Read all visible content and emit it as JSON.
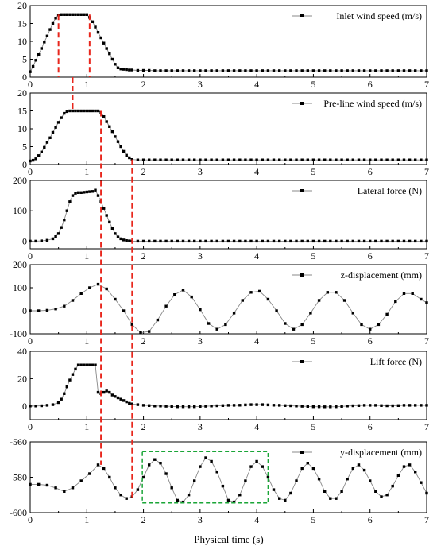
{
  "chart_data": {
    "type": "line",
    "xlabel": "Physical time (s)",
    "xlim": [
      0,
      7
    ],
    "x_ticks": [
      "0",
      "1",
      "2",
      "3",
      "4",
      "5",
      "6",
      "7"
    ],
    "legend_placement": "top-right",
    "grid": false,
    "line_color": "#888888",
    "marker_color": "#000000",
    "marker_style": "square",
    "panels": [
      {
        "legend": "Inlet wind speed (m/s)",
        "ylim": [
          0,
          20
        ],
        "y_ticks": [
          "0",
          "5",
          "10",
          "15",
          "20"
        ],
        "series": {
          "x": [
            0,
            0.05,
            0.1,
            0.15,
            0.2,
            0.25,
            0.3,
            0.35,
            0.4,
            0.45,
            0.5,
            0.55,
            0.6,
            0.65,
            0.7,
            0.75,
            0.8,
            0.85,
            0.9,
            0.95,
            1.0,
            1.05,
            1.1,
            1.15,
            1.2,
            1.25,
            1.3,
            1.35,
            1.4,
            1.45,
            1.5,
            1.55,
            1.6,
            1.65,
            1.7,
            1.75,
            1.8,
            1.9,
            2.0,
            2.1,
            2.2,
            2.3,
            2.4,
            2.5,
            2.6,
            2.7,
            2.8,
            2.9,
            3.0,
            3.1,
            3.2,
            3.3,
            3.4,
            3.5,
            3.6,
            3.7,
            3.8,
            3.9,
            4.0,
            4.1,
            4.2,
            4.3,
            4.4,
            4.5,
            4.6,
            4.7,
            4.8,
            4.9,
            5.0,
            5.1,
            5.2,
            5.3,
            5.4,
            5.5,
            5.6,
            5.7,
            5.8,
            5.9,
            6.0,
            6.1,
            6.2,
            6.3,
            6.4,
            6.5,
            6.6,
            6.7,
            6.8,
            6.9,
            7.0
          ],
          "y": [
            1.5,
            3.0,
            4.7,
            6.3,
            8.0,
            9.8,
            11.5,
            13.3,
            15.0,
            16.5,
            17.4,
            17.5,
            17.5,
            17.5,
            17.5,
            17.5,
            17.5,
            17.5,
            17.5,
            17.5,
            17.5,
            16.7,
            15.5,
            14.0,
            12.5,
            11.0,
            9.5,
            8.0,
            6.5,
            5.0,
            3.6,
            2.6,
            2.3,
            2.2,
            2.1,
            2.0,
            2.0,
            1.9,
            1.9,
            1.9,
            1.8,
            1.8,
            1.8,
            1.8,
            1.8,
            1.8,
            1.8,
            1.8,
            1.8,
            1.8,
            1.8,
            1.8,
            1.8,
            1.8,
            1.8,
            1.8,
            1.8,
            1.8,
            1.8,
            1.8,
            1.8,
            1.8,
            1.8,
            1.8,
            1.8,
            1.8,
            1.8,
            1.8,
            1.8,
            1.8,
            1.8,
            1.8,
            1.8,
            1.8,
            1.8,
            1.8,
            1.8,
            1.8,
            1.8,
            1.8,
            1.8,
            1.8,
            1.8,
            1.8,
            1.8,
            1.8,
            1.8,
            1.8,
            1.8
          ]
        }
      },
      {
        "legend": "Pre-line wind speed (m/s)",
        "ylim": [
          0,
          20
        ],
        "y_ticks": [
          "0",
          "5",
          "10",
          "15",
          "20"
        ],
        "series": {
          "x": [
            0,
            0.05,
            0.1,
            0.15,
            0.2,
            0.25,
            0.3,
            0.35,
            0.4,
            0.45,
            0.5,
            0.55,
            0.6,
            0.65,
            0.7,
            0.75,
            0.8,
            0.85,
            0.9,
            0.95,
            1.0,
            1.05,
            1.1,
            1.15,
            1.2,
            1.25,
            1.3,
            1.35,
            1.4,
            1.45,
            1.5,
            1.55,
            1.6,
            1.65,
            1.7,
            1.75,
            1.8,
            1.9,
            2.0,
            2.1,
            2.2,
            2.3,
            2.4,
            2.5,
            2.6,
            2.7,
            2.8,
            2.9,
            3.0,
            3.1,
            3.2,
            3.3,
            3.4,
            3.5,
            3.6,
            3.7,
            3.8,
            3.9,
            4.0,
            4.1,
            4.2,
            4.3,
            4.4,
            4.5,
            4.6,
            4.7,
            4.8,
            4.9,
            5.0,
            5.1,
            5.2,
            5.3,
            5.4,
            5.5,
            5.6,
            5.7,
            5.8,
            5.9,
            6.0,
            6.1,
            6.2,
            6.3,
            6.4,
            6.5,
            6.6,
            6.7,
            6.8,
            6.9,
            7.0
          ],
          "y": [
            1.0,
            1.2,
            1.6,
            2.5,
            3.5,
            4.8,
            6.2,
            7.5,
            9.0,
            10.4,
            11.8,
            13.1,
            14.3,
            14.8,
            15.0,
            15.0,
            15.0,
            15.0,
            15.0,
            15.0,
            15.0,
            15.0,
            15.0,
            15.0,
            15.0,
            14.6,
            13.4,
            12.0,
            10.6,
            9.2,
            7.8,
            6.4,
            5.0,
            3.7,
            2.6,
            1.9,
            1.4,
            1.3,
            1.3,
            1.3,
            1.3,
            1.3,
            1.3,
            1.3,
            1.3,
            1.3,
            1.3,
            1.3,
            1.3,
            1.3,
            1.3,
            1.3,
            1.3,
            1.3,
            1.3,
            1.3,
            1.3,
            1.3,
            1.3,
            1.3,
            1.3,
            1.3,
            1.3,
            1.3,
            1.3,
            1.3,
            1.3,
            1.3,
            1.3,
            1.3,
            1.3,
            1.3,
            1.3,
            1.3,
            1.3,
            1.3,
            1.3,
            1.3,
            1.3,
            1.3,
            1.3,
            1.3,
            1.3,
            1.3,
            1.3,
            1.3,
            1.3,
            1.3,
            1.3
          ]
        }
      },
      {
        "legend": "Lateral force (N)",
        "ylim": [
          -25,
          200
        ],
        "y_ticks": [
          "0",
          "100",
          "200"
        ],
        "y_tick_values": [
          0,
          100,
          200
        ],
        "series": {
          "x": [
            0,
            0.1,
            0.2,
            0.3,
            0.4,
            0.45,
            0.5,
            0.55,
            0.6,
            0.65,
            0.7,
            0.75,
            0.8,
            0.85,
            0.9,
            0.95,
            1.0,
            1.05,
            1.1,
            1.15,
            1.2,
            1.25,
            1.3,
            1.35,
            1.4,
            1.45,
            1.5,
            1.55,
            1.6,
            1.65,
            1.7,
            1.75,
            1.8,
            1.9,
            2.0,
            2.1,
            2.2,
            2.3,
            2.4,
            2.5,
            2.6,
            2.7,
            2.8,
            2.9,
            3.0,
            3.1,
            3.2,
            3.3,
            3.4,
            3.5,
            3.6,
            3.7,
            3.8,
            3.9,
            4.0,
            4.1,
            4.2,
            4.3,
            4.4,
            4.5,
            4.6,
            4.7,
            4.8,
            4.9,
            5.0,
            5.1,
            5.2,
            5.3,
            5.4,
            5.5,
            5.6,
            5.7,
            5.8,
            5.9,
            6.0,
            6.1,
            6.2,
            6.3,
            6.4,
            6.5,
            6.6,
            6.7,
            6.8,
            6.9,
            7.0
          ],
          "y": [
            0,
            0,
            1,
            3,
            8,
            15,
            25,
            45,
            70,
            100,
            130,
            150,
            158,
            160,
            160,
            161,
            162,
            163,
            164,
            168,
            150,
            130,
            108,
            85,
            63,
            42,
            25,
            14,
            8,
            4,
            2,
            1,
            0,
            0,
            0,
            0,
            0,
            0,
            0,
            0,
            0,
            0,
            0,
            0,
            0,
            0,
            0,
            0,
            0,
            0,
            0,
            0,
            0,
            0,
            0,
            0,
            0,
            0,
            0,
            0,
            0,
            0,
            0,
            0,
            0,
            0,
            0,
            0,
            0,
            0,
            0,
            0,
            0,
            0,
            0,
            0,
            0,
            0,
            0,
            0,
            0,
            0,
            0,
            0,
            0
          ]
        }
      },
      {
        "legend": "z-displacement (mm)",
        "ylim": [
          -100,
          200
        ],
        "y_ticks": [
          "-100",
          "0",
          "100",
          "200"
        ],
        "y_tick_values": [
          -100,
          0,
          100,
          200
        ],
        "series": {
          "x": [
            0,
            0.15,
            0.3,
            0.45,
            0.6,
            0.75,
            0.9,
            1.05,
            1.2,
            1.35,
            1.5,
            1.65,
            1.8,
            1.95,
            2.1,
            2.25,
            2.4,
            2.55,
            2.7,
            2.85,
            3.0,
            3.15,
            3.3,
            3.45,
            3.6,
            3.75,
            3.9,
            4.05,
            4.2,
            4.35,
            4.5,
            4.65,
            4.8,
            4.95,
            5.1,
            5.25,
            5.4,
            5.55,
            5.7,
            5.85,
            6.0,
            6.15,
            6.3,
            6.45,
            6.6,
            6.75,
            6.9,
            7.0
          ],
          "y": [
            0,
            0,
            2,
            8,
            20,
            45,
            75,
            100,
            115,
            95,
            50,
            0,
            -60,
            -95,
            -90,
            -40,
            20,
            70,
            90,
            60,
            5,
            -55,
            -80,
            -60,
            -10,
            45,
            80,
            85,
            50,
            0,
            -55,
            -80,
            -60,
            -10,
            45,
            80,
            80,
            45,
            -10,
            -60,
            -80,
            -60,
            -15,
            40,
            75,
            75,
            50,
            35
          ]
        }
      },
      {
        "legend": "Lift force (N)",
        "ylim": [
          -10,
          40
        ],
        "y_ticks": [
          "0",
          "20",
          "40"
        ],
        "y_tick_values": [
          0,
          20,
          40
        ],
        "series": {
          "x": [
            0,
            0.1,
            0.2,
            0.3,
            0.4,
            0.5,
            0.55,
            0.6,
            0.65,
            0.7,
            0.75,
            0.8,
            0.85,
            0.9,
            0.95,
            1.0,
            1.05,
            1.1,
            1.15,
            1.2,
            1.25,
            1.3,
            1.35,
            1.4,
            1.45,
            1.5,
            1.55,
            1.6,
            1.65,
            1.7,
            1.75,
            1.8,
            1.9,
            2.0,
            2.1,
            2.2,
            2.3,
            2.4,
            2.5,
            2.6,
            2.7,
            2.8,
            2.9,
            3.0,
            3.1,
            3.2,
            3.3,
            3.4,
            3.5,
            3.6,
            3.7,
            3.8,
            3.9,
            4.0,
            4.1,
            4.2,
            4.3,
            4.4,
            4.5,
            4.6,
            4.7,
            4.8,
            4.9,
            5.0,
            5.1,
            5.2,
            5.3,
            5.4,
            5.5,
            5.6,
            5.7,
            5.8,
            5.9,
            6.0,
            6.1,
            6.2,
            6.3,
            6.4,
            6.5,
            6.6,
            6.7,
            6.8,
            6.9,
            7.0
          ],
          "y": [
            0,
            0,
            0.2,
            0.5,
            1,
            2.5,
            5,
            9,
            14,
            19,
            23,
            27,
            30,
            30,
            30,
            30,
            30,
            30,
            30,
            10,
            9,
            10,
            11,
            10,
            8,
            7,
            6,
            5,
            4,
            3,
            2,
            1.5,
            1,
            0.5,
            0.3,
            0,
            0,
            -0.2,
            -0.3,
            -0.5,
            -0.5,
            -0.5,
            -0.5,
            -0.3,
            -0.2,
            0,
            0.2,
            0.3,
            0.5,
            0.5,
            0.6,
            0.8,
            1,
            1,
            1,
            0.8,
            0.6,
            0.5,
            0.3,
            0.2,
            0,
            -0.2,
            -0.3,
            -0.5,
            -0.5,
            -0.6,
            -0.6,
            -0.5,
            -0.3,
            0,
            0.2,
            0.3,
            0.5,
            0.5,
            0.5,
            0.3,
            0.2,
            0.2,
            0.3,
            0.5,
            0.5,
            0.5,
            0.5,
            0.5
          ]
        }
      },
      {
        "legend": "y-displacement (mm)",
        "ylim": [
          -600,
          -560
        ],
        "y_ticks": [
          "-600",
          "-580",
          "-560"
        ],
        "y_tick_values": [
          -600,
          -580,
          -560
        ],
        "series": {
          "x": [
            0,
            0.15,
            0.3,
            0.45,
            0.6,
            0.75,
            0.9,
            1.05,
            1.2,
            1.3,
            1.4,
            1.5,
            1.6,
            1.7,
            1.8,
            1.9,
            2.0,
            2.1,
            2.2,
            2.3,
            2.4,
            2.5,
            2.6,
            2.7,
            2.8,
            2.9,
            3.0,
            3.1,
            3.2,
            3.3,
            3.4,
            3.5,
            3.6,
            3.7,
            3.8,
            3.9,
            4.0,
            4.1,
            4.2,
            4.3,
            4.4,
            4.5,
            4.6,
            4.7,
            4.8,
            4.9,
            5.0,
            5.1,
            5.2,
            5.3,
            5.4,
            5.5,
            5.6,
            5.7,
            5.8,
            5.9,
            6.0,
            6.1,
            6.2,
            6.3,
            6.4,
            6.5,
            6.6,
            6.7,
            6.8,
            6.9,
            7.0
          ],
          "y": [
            -584,
            -584,
            -584.5,
            -586,
            -588,
            -586,
            -582,
            -578,
            -573,
            -575,
            -580,
            -586,
            -590,
            -592,
            -591,
            -587,
            -580,
            -573,
            -570,
            -572,
            -578,
            -586,
            -593,
            -594,
            -590,
            -582,
            -574,
            -569,
            -571,
            -577,
            -585,
            -593,
            -594,
            -590,
            -582,
            -574,
            -571,
            -574,
            -580,
            -587,
            -592,
            -593,
            -589,
            -582,
            -575,
            -572,
            -575,
            -581,
            -588,
            -592,
            -592,
            -588,
            -581,
            -575,
            -573,
            -576,
            -582,
            -588,
            -591,
            -590,
            -585,
            -579,
            -574,
            -573,
            -577,
            -583,
            -589
          ]
        }
      }
    ],
    "annotations": {
      "red_dashed_lines_x": [
        0.5,
        1.05,
        0.75,
        1.25,
        1.8
      ],
      "green_dashed_box": {
        "x": [
          1.98,
          4.2
        ],
        "y": [
          -594.5,
          -565.5
        ]
      }
    }
  }
}
